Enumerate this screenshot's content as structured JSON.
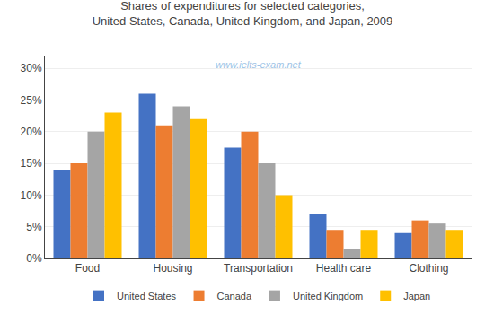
{
  "chart_data": {
    "type": "bar",
    "title": "Shares of expenditures for selected categories,\nUnited States, Canada, United Kingdom, and Japan, 2009",
    "annotations": [
      "www.ielts-exam.net"
    ],
    "categories": [
      "Food",
      "Housing",
      "Transportation",
      "Health care",
      "Clothing"
    ],
    "series": [
      {
        "name": "United States",
        "color": "#4472C4",
        "values": [
          14,
          26,
          17.5,
          7,
          4
        ]
      },
      {
        "name": "Canada",
        "color": "#ED7D31",
        "values": [
          15,
          21,
          20,
          4.5,
          6
        ]
      },
      {
        "name": "United Kingdom",
        "color": "#A5A5A5",
        "values": [
          20,
          24,
          15,
          1.5,
          5.5
        ]
      },
      {
        "name": "Japan",
        "color": "#FFC000",
        "values": [
          23,
          22,
          10,
          4.5,
          4.5
        ]
      }
    ],
    "ylim": [
      0,
      32
    ],
    "yticks": [
      {
        "value": 0,
        "label": "0%"
      },
      {
        "value": 5,
        "label": "5%"
      },
      {
        "value": 10,
        "label": "10%"
      },
      {
        "value": 15,
        "label": "15%"
      },
      {
        "value": 20,
        "label": "20%"
      },
      {
        "value": 25,
        "label": "25%"
      },
      {
        "value": 30,
        "label": "30%"
      }
    ],
    "grid": true,
    "legend": "bottom"
  }
}
